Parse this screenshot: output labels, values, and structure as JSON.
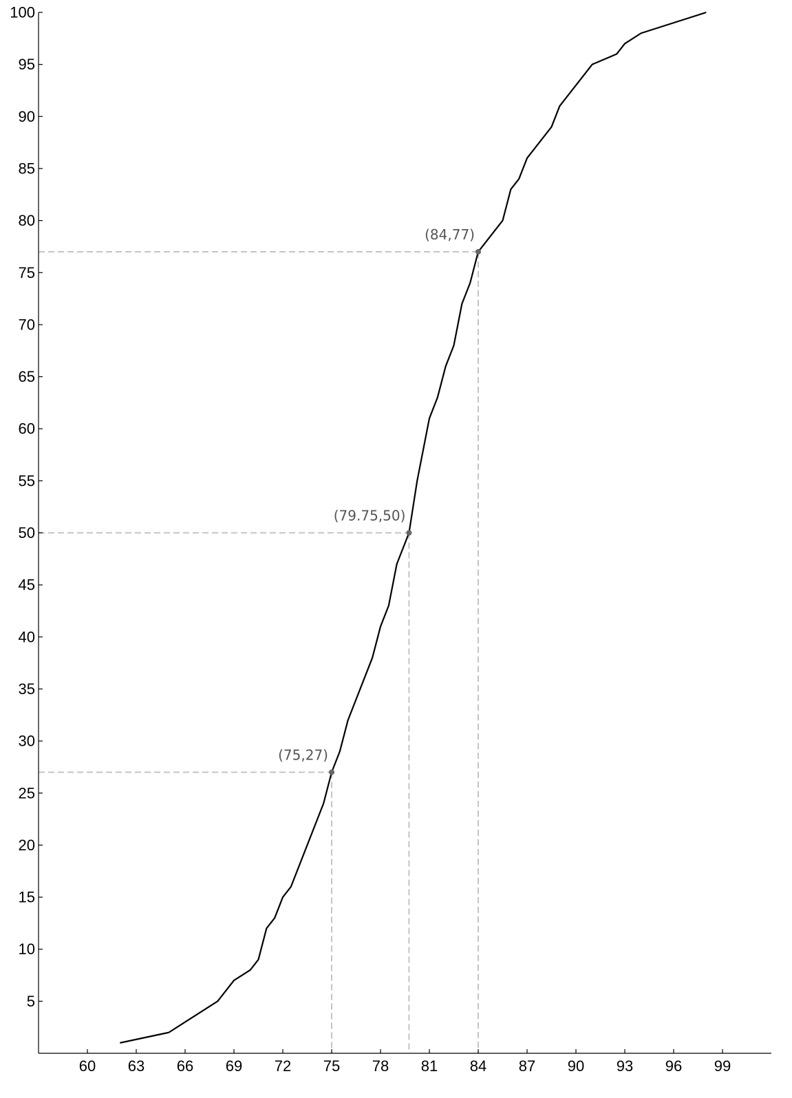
{
  "chart_data": {
    "type": "line",
    "title": "",
    "xlabel": "",
    "ylabel": "",
    "xlim": [
      57,
      102
    ],
    "ylim": [
      0,
      100
    ],
    "x_ticks": [
      60,
      63,
      66,
      69,
      72,
      75,
      78,
      81,
      84,
      87,
      90,
      93,
      96,
      99
    ],
    "y_ticks": [
      5,
      10,
      15,
      20,
      25,
      30,
      35,
      40,
      45,
      50,
      55,
      60,
      65,
      70,
      75,
      80,
      85,
      90,
      95,
      100
    ],
    "grid": false,
    "legend": "none",
    "series": [
      {
        "color": "#000000",
        "points": [
          [
            62,
            1
          ],
          [
            65,
            2
          ],
          [
            68,
            5
          ],
          [
            69,
            7
          ],
          [
            70,
            8
          ],
          [
            70.5,
            9
          ],
          [
            71,
            12
          ],
          [
            71.5,
            13
          ],
          [
            72,
            15
          ],
          [
            72.5,
            16
          ],
          [
            74.5,
            24
          ],
          [
            75,
            27
          ],
          [
            75.5,
            29
          ],
          [
            76,
            32
          ],
          [
            77.5,
            38
          ],
          [
            78,
            41
          ],
          [
            78.5,
            43
          ],
          [
            79,
            47
          ],
          [
            79.75,
            50
          ],
          [
            80.25,
            55
          ],
          [
            81,
            61
          ],
          [
            81.5,
            63
          ],
          [
            82,
            66
          ],
          [
            82.5,
            68
          ],
          [
            83,
            72
          ],
          [
            83.5,
            74
          ],
          [
            84,
            77
          ],
          [
            85.5,
            80
          ],
          [
            86,
            83
          ],
          [
            86.5,
            84
          ],
          [
            87,
            86
          ],
          [
            88.5,
            89
          ],
          [
            89,
            91
          ],
          [
            91,
            95
          ],
          [
            92.5,
            96
          ],
          [
            93,
            97
          ],
          [
            94,
            98
          ],
          [
            98,
            100
          ]
        ]
      }
    ],
    "annotations": [
      {
        "x": 75,
        "y": 27,
        "label": "(75,27)"
      },
      {
        "x": 79.75,
        "y": 50,
        "label": "(79.75,50)"
      },
      {
        "x": 84,
        "y": 77,
        "label": "(84,77)"
      }
    ],
    "annotation_color": "#666666",
    "guide_color": "#c4c4c4"
  }
}
